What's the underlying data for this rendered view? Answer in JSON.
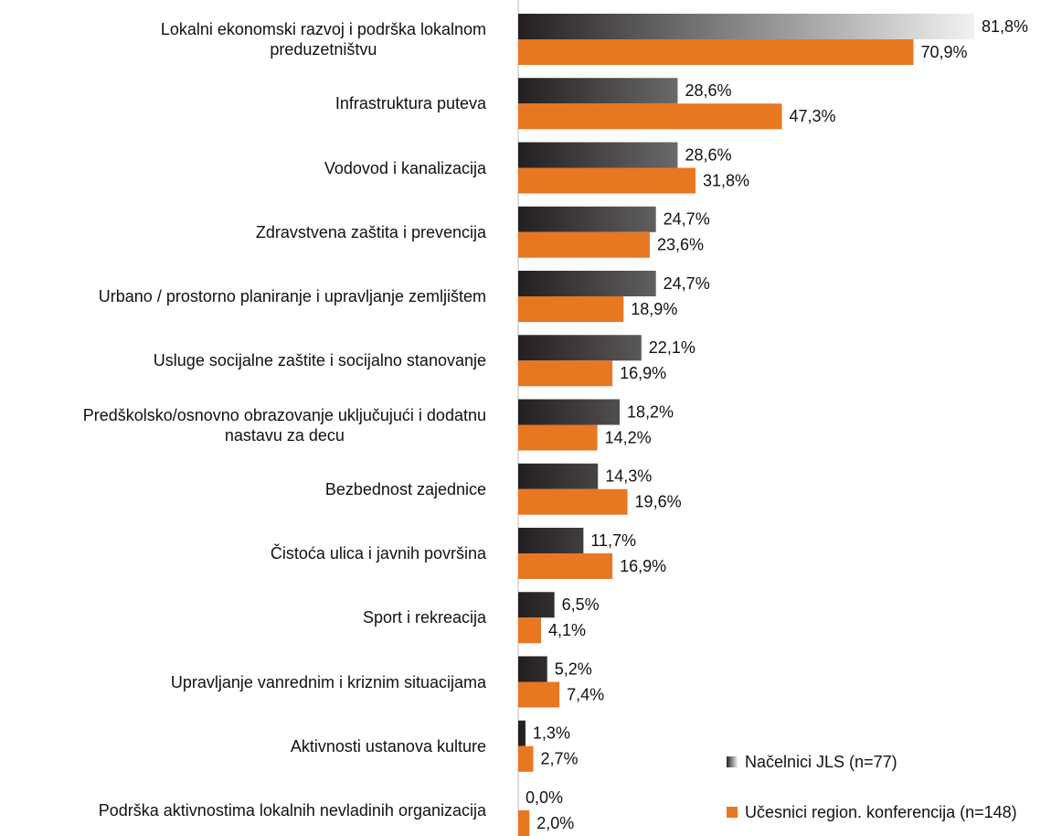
{
  "chart_data": {
    "type": "bar",
    "orientation": "horizontal",
    "categories": [
      "Lokalni ekonomski razvoj i podrška lokalnom\npreduzetništvu",
      "Infrastruktura puteva",
      "Vodovod i kanalizacija",
      "Zdravstvena zaštita i prevencija",
      "Urbano / prostorno planiranje i upravljanje zemljištem",
      "Usluge socijalne zaštite i socijalno stanovanje",
      "Predškolsko/osnovno obrazovanje uključujući i dodatnu\nnastavu za decu",
      "Bezbednost zajednice",
      "Čistoća ulica i javnih površina",
      "Sport i rekreacija",
      "Upravljanje vanrednim i kriznim situacijama",
      "Aktivnosti ustanova kulture",
      "Podrška aktivnostima lokalnih nevladinih organizacija"
    ],
    "series": [
      {
        "name": "Načelnici JLS (n=77)",
        "color": "#231f20",
        "gradient_end": "#f2f2f2",
        "values": [
          81.8,
          28.6,
          28.6,
          24.7,
          24.7,
          22.1,
          18.2,
          14.3,
          11.7,
          6.5,
          5.2,
          1.3,
          0.0
        ],
        "value_labels": [
          "81,8%",
          "28,6%",
          "28,6%",
          "24,7%",
          "24,7%",
          "22,1%",
          "18,2%",
          "14,3%",
          "11,7%",
          "6,5%",
          "5,2%",
          "1,3%",
          "0,0%"
        ]
      },
      {
        "name": "Učesnici region. konferencija (n=148)",
        "color": "#e87722",
        "values": [
          70.9,
          47.3,
          31.8,
          23.6,
          18.9,
          16.9,
          14.2,
          19.6,
          16.9,
          4.1,
          7.4,
          2.7,
          2.0
        ],
        "value_labels": [
          "70,9%",
          "47,3%",
          "31,8%",
          "23,6%",
          "18,9%",
          "16,9%",
          "14,2%",
          "19,6%",
          "16,9%",
          "4,1%",
          "7,4%",
          "2,7%",
          "2,0%"
        ]
      }
    ],
    "legend": "lower right"
  }
}
